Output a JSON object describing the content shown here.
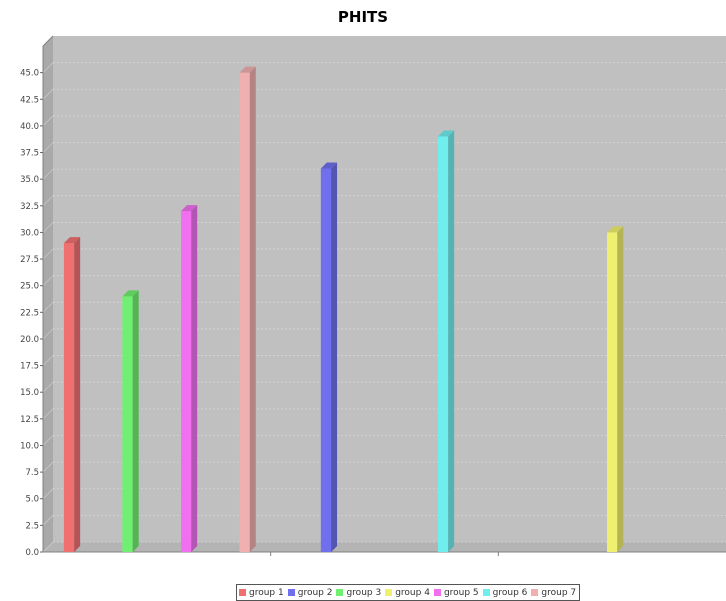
{
  "chart_data": {
    "type": "bar",
    "title": "PHITS",
    "xlabel": "",
    "ylabel": "",
    "ylim": [
      0,
      47.5
    ],
    "ytick_step": 2.5,
    "grid": true,
    "three_d": true,
    "legend_position": "bottom",
    "x_groups": 3,
    "background_color": "#c0c0c0",
    "series": [
      {
        "name": "group 1",
        "color": "#f07070",
        "values": [
          29.0,
          null,
          null
        ]
      },
      {
        "name": "group 2",
        "color": "#7070ee",
        "values": [
          null,
          36.0,
          null
        ]
      },
      {
        "name": "group 3",
        "color": "#70f070",
        "values": [
          24.0,
          null,
          null
        ]
      },
      {
        "name": "group 4",
        "color": "#f0f070",
        "values": [
          null,
          null,
          30.0
        ]
      },
      {
        "name": "group 5",
        "color": "#f070f0",
        "values": [
          32.0,
          null,
          null
        ]
      },
      {
        "name": "group 6",
        "color": "#70eeee",
        "values": [
          null,
          39.0,
          null
        ]
      },
      {
        "name": "group 7",
        "color": "#f0b0b0",
        "values": [
          45.0,
          null,
          null
        ]
      }
    ]
  }
}
